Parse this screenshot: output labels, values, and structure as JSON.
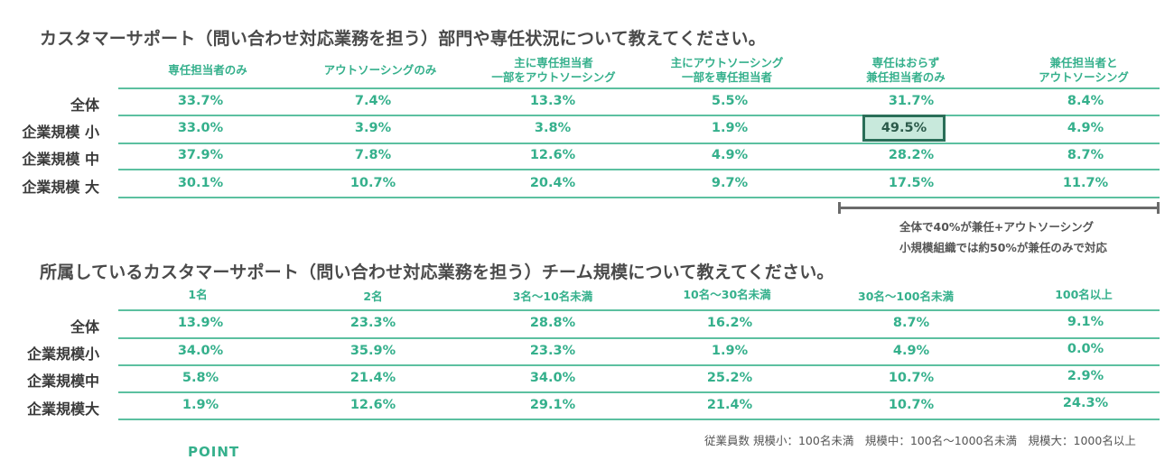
{
  "table1": {
    "title": "カスタマーサポート（問い合わせ対応業務を担う）部門や専任状況について教えてください。",
    "headers": [
      {
        "line1": "専任担当者のみ",
        "line2": ""
      },
      {
        "line1": "アウトソーシングのみ",
        "line2": ""
      },
      {
        "line1": "主に専任担当者",
        "line2": "一部をアウトソーシング"
      },
      {
        "line1": "主にアウトソーシング",
        "line2": "一部を専任担当者"
      },
      {
        "line1": "専任はおらず",
        "line2": "兼任担当者のみ"
      },
      {
        "line1": "兼任担当者と",
        "line2": "アウトソーシング"
      }
    ],
    "rows": [
      {
        "label": "全体",
        "values": [
          "33.7%",
          "7.4%",
          "13.3%",
          "5.5%",
          "31.7%",
          "8.4%"
        ]
      },
      {
        "label": "企業規模 小",
        "values": [
          "33.0%",
          "3.9%",
          "3.8%",
          "1.9%",
          "49.5%",
          "4.9%"
        ]
      },
      {
        "label": "企業規模 中",
        "values": [
          "37.9%",
          "7.8%",
          "12.6%",
          "4.9%",
          "28.2%",
          "8.7%"
        ]
      },
      {
        "label": "企業規模 大",
        "values": [
          "30.1%",
          "10.7%",
          "20.4%",
          "9.7%",
          "17.5%",
          "11.7%"
        ]
      }
    ],
    "highlighted_cell": {
      "row": 1,
      "col": 4
    },
    "note_line1": "全体で40%が兼任+アウトソーシング",
    "note_line2": "小規模組織では約50%が兼任のみで対応"
  },
  "table2": {
    "title": "所属しているカスタマーサポート（問い合わせ対応業務を担う）チーム規模について教えてください。",
    "headers": [
      "1名",
      "2名",
      "3名～10名未満",
      "10名～30名未満",
      "30名～100名未満",
      "100名以上"
    ],
    "rows": [
      {
        "label": "全体",
        "values": [
          "13.9%",
          "23.3%",
          "28.8%",
          "16.2%",
          "8.7%",
          "9.1%"
        ]
      },
      {
        "label": "企業規模小",
        "values": [
          "34.0%",
          "35.9%",
          "23.3%",
          "1.9%",
          "4.9%",
          "0.0%"
        ]
      },
      {
        "label": "企業規模中",
        "values": [
          "5.8%",
          "21.4%",
          "34.0%",
          "25.2%",
          "10.7%",
          "2.9%"
        ]
      },
      {
        "label": "企業規模大",
        "values": [
          "1.9%",
          "12.6%",
          "29.1%",
          "21.4%",
          "10.7%",
          "24.3%"
        ]
      }
    ]
  },
  "footnote": "従業員数 規模小：100名未満　規模中：100名～1000名未満　規模大：1000名以上",
  "point_label": "POINT",
  "colors": {
    "accent": "#35b08c",
    "highlight_bg": "#c8e9dc",
    "highlight_border": "#2a6e58",
    "text": "#3a3a3a"
  }
}
